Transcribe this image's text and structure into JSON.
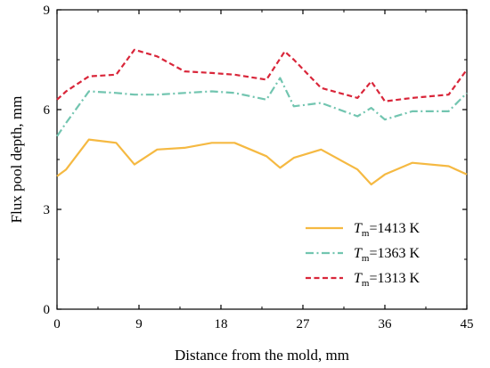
{
  "chart_data": {
    "type": "line",
    "title": "",
    "xlabel": "Distance from the mold, mm",
    "ylabel": "Flux pool depth, mm",
    "xlim": [
      0,
      45
    ],
    "ylim": [
      0,
      9
    ],
    "xticks": [
      0,
      9,
      18,
      27,
      36,
      45
    ],
    "yticks": [
      0,
      3,
      6,
      9
    ],
    "grid": false,
    "legend_position": "lower-right",
    "series": [
      {
        "name_prefix": "T",
        "name_sub": "m",
        "name_rest": "=1413 K",
        "color": "#F5B942",
        "style": "solid",
        "x": [
          0,
          1,
          3.5,
          6.5,
          8.5,
          11,
          14,
          17,
          19.5,
          23,
          24.5,
          26,
          29,
          33,
          34.5,
          36,
          39,
          43,
          45
        ],
        "y": [
          4.0,
          4.2,
          5.1,
          5.0,
          4.35,
          4.8,
          4.85,
          5.0,
          5.0,
          4.6,
          4.25,
          4.55,
          4.8,
          4.2,
          3.75,
          4.05,
          4.4,
          4.3,
          4.05
        ]
      },
      {
        "name_prefix": "T",
        "name_sub": "m",
        "name_rest": "=1363 K",
        "color": "#72C5B0",
        "style": "dashdot",
        "x": [
          0,
          1,
          3.5,
          6.5,
          8.5,
          11,
          14,
          17,
          19.5,
          23,
          24.5,
          26,
          29,
          33,
          34.5,
          36,
          39,
          43,
          45
        ],
        "y": [
          5.2,
          5.6,
          6.55,
          6.5,
          6.45,
          6.45,
          6.5,
          6.55,
          6.5,
          6.3,
          6.95,
          6.1,
          6.2,
          5.8,
          6.05,
          5.7,
          5.95,
          5.95,
          6.5
        ]
      },
      {
        "name_prefix": "T",
        "name_sub": "m",
        "name_rest": "=1313 K",
        "color": "#D9263A",
        "style": "dashed",
        "x": [
          0,
          1,
          3.5,
          6.5,
          8.5,
          11,
          14,
          17,
          19.5,
          23,
          25,
          26,
          29,
          33,
          34.5,
          36,
          39,
          43,
          45
        ],
        "y": [
          6.3,
          6.55,
          7.0,
          7.05,
          7.8,
          7.6,
          7.15,
          7.1,
          7.05,
          6.9,
          7.75,
          7.5,
          6.65,
          6.35,
          6.85,
          6.25,
          6.35,
          6.45,
          7.2
        ]
      }
    ]
  }
}
